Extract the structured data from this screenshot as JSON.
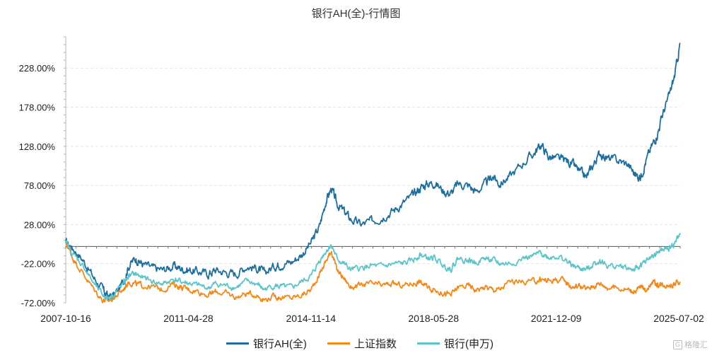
{
  "chart_data": {
    "type": "line",
    "title": "银行AH(全)-行情图",
    "xlabel": "",
    "ylabel": "",
    "x_tick_labels": [
      "2007-10-16",
      "2011-04-28",
      "2014-11-14",
      "2018-05-28",
      "2021-12-09",
      "2025-07-02"
    ],
    "y_tick_labels": [
      "228.00%",
      "178.00%",
      "128.00%",
      "78.00%",
      "28.00%",
      "-22.00%",
      "-72.00%"
    ],
    "y_ticks": [
      228,
      178,
      128,
      78,
      28,
      -22,
      -72
    ],
    "ylim": [
      -72,
      268
    ],
    "xlim": [
      2007.79,
      2025.5
    ],
    "grid": "horizontal dashed",
    "legend_position": "bottom",
    "series": [
      {
        "name": "银行AH(全)",
        "color": "#1f6e9c",
        "points": [
          [
            2007.79,
            5
          ],
          [
            2008.0,
            -2
          ],
          [
            2008.3,
            -18
          ],
          [
            2008.6,
            -40
          ],
          [
            2008.85,
            -55
          ],
          [
            2009.0,
            -64
          ],
          [
            2009.2,
            -62
          ],
          [
            2009.45,
            -45
          ],
          [
            2009.6,
            -25
          ],
          [
            2009.8,
            -15
          ],
          [
            2010.0,
            -22
          ],
          [
            2010.3,
            -28
          ],
          [
            2010.6,
            -30
          ],
          [
            2010.9,
            -25
          ],
          [
            2011.1,
            -28
          ],
          [
            2011.33,
            -30
          ],
          [
            2011.6,
            -32
          ],
          [
            2011.9,
            -35
          ],
          [
            2012.1,
            -30
          ],
          [
            2012.4,
            -33
          ],
          [
            2012.7,
            -35
          ],
          [
            2013.0,
            -25
          ],
          [
            2013.3,
            -28
          ],
          [
            2013.5,
            -34
          ],
          [
            2013.8,
            -25
          ],
          [
            2014.0,
            -22
          ],
          [
            2014.3,
            -20
          ],
          [
            2014.6,
            -10
          ],
          [
            2014.87,
            5
          ],
          [
            2015.1,
            25
          ],
          [
            2015.3,
            60
          ],
          [
            2015.45,
            74
          ],
          [
            2015.6,
            55
          ],
          [
            2015.8,
            45
          ],
          [
            2016.0,
            35
          ],
          [
            2016.3,
            28
          ],
          [
            2016.6,
            32
          ],
          [
            2016.9,
            38
          ],
          [
            2017.2,
            45
          ],
          [
            2017.5,
            55
          ],
          [
            2017.8,
            65
          ],
          [
            2018.0,
            75
          ],
          [
            2018.2,
            80
          ],
          [
            2018.41,
            82
          ],
          [
            2018.7,
            70
          ],
          [
            2018.9,
            68
          ],
          [
            2019.1,
            80
          ],
          [
            2019.4,
            78
          ],
          [
            2019.6,
            70
          ],
          [
            2019.9,
            80
          ],
          [
            2020.1,
            90
          ],
          [
            2020.3,
            80
          ],
          [
            2020.6,
            90
          ],
          [
            2021.0,
            108
          ],
          [
            2021.3,
            120
          ],
          [
            2021.5,
            130
          ],
          [
            2021.7,
            115
          ],
          [
            2021.94,
            112
          ],
          [
            2022.2,
            110
          ],
          [
            2022.4,
            105
          ],
          [
            2022.6,
            95
          ],
          [
            2022.8,
            88
          ],
          [
            2023.0,
            105
          ],
          [
            2023.2,
            120
          ],
          [
            2023.4,
            112
          ],
          [
            2023.7,
            110
          ],
          [
            2024.0,
            105
          ],
          [
            2024.2,
            92
          ],
          [
            2024.35,
            88
          ],
          [
            2024.5,
            108
          ],
          [
            2024.7,
            130
          ],
          [
            2024.85,
            145
          ],
          [
            2025.0,
            170
          ],
          [
            2025.2,
            195
          ],
          [
            2025.35,
            220
          ],
          [
            2025.5,
            260
          ]
        ]
      },
      {
        "name": "上证指数",
        "color": "#f08a1a",
        "points": [
          [
            2007.79,
            5
          ],
          [
            2008.0,
            -15
          ],
          [
            2008.3,
            -35
          ],
          [
            2008.6,
            -55
          ],
          [
            2008.85,
            -68
          ],
          [
            2009.0,
            -70
          ],
          [
            2009.2,
            -65
          ],
          [
            2009.45,
            -55
          ],
          [
            2009.6,
            -45
          ],
          [
            2009.8,
            -48
          ],
          [
            2010.0,
            -50
          ],
          [
            2010.3,
            -52
          ],
          [
            2010.6,
            -55
          ],
          [
            2010.9,
            -48
          ],
          [
            2011.1,
            -52
          ],
          [
            2011.33,
            -55
          ],
          [
            2011.6,
            -57
          ],
          [
            2011.9,
            -62
          ],
          [
            2012.1,
            -58
          ],
          [
            2012.4,
            -60
          ],
          [
            2012.7,
            -65
          ],
          [
            2013.0,
            -60
          ],
          [
            2013.3,
            -62
          ],
          [
            2013.5,
            -68
          ],
          [
            2013.8,
            -64
          ],
          [
            2014.0,
            -65
          ],
          [
            2014.3,
            -66
          ],
          [
            2014.6,
            -62
          ],
          [
            2014.87,
            -55
          ],
          [
            2015.1,
            -35
          ],
          [
            2015.3,
            -18
          ],
          [
            2015.45,
            -5
          ],
          [
            2015.6,
            -30
          ],
          [
            2015.8,
            -40
          ],
          [
            2016.0,
            -52
          ],
          [
            2016.3,
            -50
          ],
          [
            2016.6,
            -48
          ],
          [
            2016.9,
            -50
          ],
          [
            2017.2,
            -48
          ],
          [
            2017.5,
            -50
          ],
          [
            2017.8,
            -47
          ],
          [
            2018.0,
            -45
          ],
          [
            2018.2,
            -52
          ],
          [
            2018.41,
            -55
          ],
          [
            2018.7,
            -60
          ],
          [
            2018.9,
            -62
          ],
          [
            2019.1,
            -52
          ],
          [
            2019.4,
            -50
          ],
          [
            2019.6,
            -55
          ],
          [
            2019.9,
            -52
          ],
          [
            2020.1,
            -55
          ],
          [
            2020.3,
            -55
          ],
          [
            2020.6,
            -45
          ],
          [
            2021.0,
            -45
          ],
          [
            2021.3,
            -45
          ],
          [
            2021.5,
            -42
          ],
          [
            2021.7,
            -44
          ],
          [
            2021.94,
            -42
          ],
          [
            2022.2,
            -45
          ],
          [
            2022.4,
            -52
          ],
          [
            2022.6,
            -50
          ],
          [
            2022.8,
            -55
          ],
          [
            2023.0,
            -50
          ],
          [
            2023.2,
            -47
          ],
          [
            2023.4,
            -52
          ],
          [
            2023.7,
            -53
          ],
          [
            2024.0,
            -55
          ],
          [
            2024.2,
            -58
          ],
          [
            2024.35,
            -52
          ],
          [
            2024.5,
            -55
          ],
          [
            2024.7,
            -45
          ],
          [
            2024.85,
            -50
          ],
          [
            2025.0,
            -48
          ],
          [
            2025.2,
            -49
          ],
          [
            2025.35,
            -48
          ],
          [
            2025.5,
            -45
          ]
        ]
      },
      {
        "name": "银行(申万)",
        "color": "#5ec4c9",
        "points": [
          [
            2007.79,
            5
          ],
          [
            2008.0,
            -10
          ],
          [
            2008.3,
            -25
          ],
          [
            2008.6,
            -48
          ],
          [
            2008.85,
            -62
          ],
          [
            2009.0,
            -66
          ],
          [
            2009.2,
            -60
          ],
          [
            2009.45,
            -48
          ],
          [
            2009.6,
            -38
          ],
          [
            2009.8,
            -35
          ],
          [
            2010.0,
            -40
          ],
          [
            2010.3,
            -45
          ],
          [
            2010.6,
            -48
          ],
          [
            2010.9,
            -42
          ],
          [
            2011.1,
            -45
          ],
          [
            2011.33,
            -47
          ],
          [
            2011.6,
            -50
          ],
          [
            2011.9,
            -53
          ],
          [
            2012.1,
            -48
          ],
          [
            2012.4,
            -50
          ],
          [
            2012.7,
            -52
          ],
          [
            2013.0,
            -45
          ],
          [
            2013.3,
            -48
          ],
          [
            2013.5,
            -55
          ],
          [
            2013.8,
            -50
          ],
          [
            2014.0,
            -52
          ],
          [
            2014.3,
            -53
          ],
          [
            2014.6,
            -45
          ],
          [
            2014.87,
            -38
          ],
          [
            2015.1,
            -18
          ],
          [
            2015.3,
            -5
          ],
          [
            2015.45,
            2
          ],
          [
            2015.6,
            -15
          ],
          [
            2015.8,
            -22
          ],
          [
            2016.0,
            -30
          ],
          [
            2016.3,
            -28
          ],
          [
            2016.6,
            -25
          ],
          [
            2016.9,
            -26
          ],
          [
            2017.2,
            -23
          ],
          [
            2017.5,
            -22
          ],
          [
            2017.8,
            -18
          ],
          [
            2018.0,
            -10
          ],
          [
            2018.2,
            -15
          ],
          [
            2018.41,
            -15
          ],
          [
            2018.7,
            -25
          ],
          [
            2018.9,
            -28
          ],
          [
            2019.1,
            -15
          ],
          [
            2019.4,
            -18
          ],
          [
            2019.6,
            -20
          ],
          [
            2019.9,
            -15
          ],
          [
            2020.1,
            -18
          ],
          [
            2020.3,
            -22
          ],
          [
            2020.6,
            -22
          ],
          [
            2021.0,
            -15
          ],
          [
            2021.3,
            -12
          ],
          [
            2021.5,
            -8
          ],
          [
            2021.7,
            -14
          ],
          [
            2021.94,
            -12
          ],
          [
            2022.2,
            -18
          ],
          [
            2022.4,
            -25
          ],
          [
            2022.6,
            -28
          ],
          [
            2022.8,
            -30
          ],
          [
            2023.0,
            -22
          ],
          [
            2023.2,
            -18
          ],
          [
            2023.4,
            -25
          ],
          [
            2023.7,
            -25
          ],
          [
            2024.0,
            -28
          ],
          [
            2024.2,
            -30
          ],
          [
            2024.35,
            -25
          ],
          [
            2024.5,
            -20
          ],
          [
            2024.7,
            -12
          ],
          [
            2024.85,
            -8
          ],
          [
            2025.0,
            -5
          ],
          [
            2025.2,
            -2
          ],
          [
            2025.35,
            5
          ],
          [
            2025.5,
            15
          ]
        ]
      }
    ]
  },
  "watermark": {
    "text": "格隆汇"
  }
}
